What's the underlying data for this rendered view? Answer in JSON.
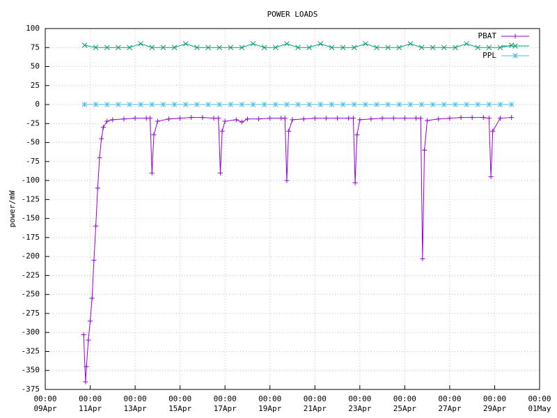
{
  "chart_data": {
    "type": "line",
    "title": "POWER LOADS",
    "y_label": "power/mW",
    "xlim": [
      "00:00 09Apr",
      "00:00 01May"
    ],
    "xticks": [
      "00:00 09Apr",
      "00:00 11Apr",
      "00:00 13Apr",
      "00:00 15Apr",
      "00:00 17Apr",
      "00:00 19Apr",
      "00:00 21Apr",
      "00:00 23Apr",
      "00:00 25Apr",
      "00:00 27Apr",
      "00:00 29Apr",
      "00:00 01May"
    ],
    "ylim": [
      -375,
      100
    ],
    "yticks": [
      100,
      75,
      50,
      25,
      0,
      -25,
      -50,
      -75,
      -100,
      -125,
      -150,
      -175,
      -200,
      -225,
      -250,
      -275,
      -300,
      -325,
      -350,
      -375
    ],
    "grid": true,
    "legend": "top right",
    "series": [
      {
        "name": "PBAT",
        "color": "#9400d3",
        "marker": "+",
        "x": [
          "17:00 10Apr",
          "19:00 10Apr",
          "20:00 10Apr",
          "22:00 10Apr",
          "00:00 11Apr",
          "02:00 11Apr",
          "04:00 11Apr",
          "06:00 11Apr",
          "08:00 11Apr",
          "10:00 11Apr",
          "12:00 11Apr",
          "14:00 11Apr",
          "18:00 11Apr",
          "00:00 12Apr",
          "12:00 12Apr",
          "00:00 13Apr",
          "12:00 13Apr",
          "16:00 13Apr",
          "18:00 13Apr",
          "20:00 13Apr",
          "00:00 14Apr",
          "12:00 14Apr",
          "00:00 15Apr",
          "12:00 15Apr",
          "00:00 16Apr",
          "12:00 16Apr",
          "17:00 16Apr",
          "19:00 16Apr",
          "21:00 16Apr",
          "00:00 17Apr",
          "12:00 17Apr",
          "18:00 17Apr",
          "00:00 18Apr",
          "12:00 18Apr",
          "00:00 19Apr",
          "12:00 19Apr",
          "16:00 19Apr",
          "18:00 19Apr",
          "20:00 19Apr",
          "00:00 20Apr",
          "12:00 20Apr",
          "00:00 21Apr",
          "12:00 21Apr",
          "00:00 22Apr",
          "12:00 22Apr",
          "17:00 22Apr",
          "19:00 22Apr",
          "21:00 22Apr",
          "00:00 23Apr",
          "12:00 23Apr",
          "00:00 24Apr",
          "12:00 24Apr",
          "00:00 25Apr",
          "12:00 25Apr",
          "17:00 25Apr",
          "19:00 25Apr",
          "21:00 25Apr",
          "00:00 26Apr",
          "12:00 26Apr",
          "00:00 27Apr",
          "12:00 27Apr",
          "00:00 28Apr",
          "12:00 28Apr",
          "18:00 28Apr",
          "20:00 28Apr",
          "22:00 28Apr",
          "06:00 29Apr",
          "18:00 29Apr"
        ],
        "values": [
          -303,
          -365,
          -345,
          -310,
          -285,
          -255,
          -205,
          -160,
          -110,
          -70,
          -45,
          -30,
          -22,
          -20,
          -19,
          -18,
          -18,
          -18,
          -90,
          -40,
          -22,
          -19,
          -18,
          -17,
          -17,
          -18,
          -18,
          -90,
          -35,
          -22,
          -20,
          -23,
          -19,
          -19,
          -18,
          -18,
          -18,
          -100,
          -35,
          -20,
          -19,
          -18,
          -18,
          -18,
          -18,
          -18,
          -103,
          -40,
          -20,
          -19,
          -18,
          -18,
          -18,
          -18,
          -18,
          -203,
          -60,
          -21,
          -19,
          -18,
          -17,
          -17,
          -17,
          -18,
          -95,
          -35,
          -18,
          -17
        ]
      },
      {
        "color": "#009e73",
        "marker": "x",
        "x": [
          "18:00 10Apr",
          "06:00 11Apr",
          "18:00 11Apr",
          "06:00 12Apr",
          "18:00 12Apr",
          "06:00 13Apr",
          "18:00 13Apr",
          "06:00 14Apr",
          "18:00 14Apr",
          "06:00 15Apr",
          "18:00 15Apr",
          "06:00 16Apr",
          "18:00 16Apr",
          "06:00 17Apr",
          "18:00 17Apr",
          "06:00 18Apr",
          "18:00 18Apr",
          "06:00 19Apr",
          "18:00 19Apr",
          "06:00 20Apr",
          "18:00 20Apr",
          "06:00 21Apr",
          "18:00 21Apr",
          "06:00 22Apr",
          "18:00 22Apr",
          "06:00 23Apr",
          "18:00 23Apr",
          "06:00 24Apr",
          "18:00 24Apr",
          "06:00 25Apr",
          "18:00 25Apr",
          "06:00 26Apr",
          "18:00 26Apr",
          "06:00 27Apr",
          "18:00 27Apr",
          "06:00 28Apr",
          "18:00 28Apr",
          "06:00 29Apr",
          "18:00 29Apr"
        ],
        "values": [
          78,
          75,
          75,
          75,
          75,
          80,
          75,
          75,
          75,
          80,
          75,
          75,
          75,
          75,
          75,
          80,
          75,
          75,
          80,
          75,
          75,
          80,
          75,
          75,
          75,
          80,
          75,
          75,
          75,
          80,
          75,
          75,
          75,
          75,
          80,
          75,
          75,
          75,
          78
        ]
      },
      {
        "name": "PPL",
        "color": "#56b4e9",
        "marker": "*",
        "x": [
          "18:00 10Apr",
          "06:00 11Apr",
          "18:00 11Apr",
          "06:00 12Apr",
          "18:00 12Apr",
          "06:00 13Apr",
          "18:00 13Apr",
          "06:00 14Apr",
          "18:00 14Apr",
          "06:00 15Apr",
          "18:00 15Apr",
          "06:00 16Apr",
          "18:00 16Apr",
          "06:00 17Apr",
          "18:00 17Apr",
          "06:00 18Apr",
          "18:00 18Apr",
          "06:00 19Apr",
          "18:00 19Apr",
          "06:00 20Apr",
          "18:00 20Apr",
          "06:00 21Apr",
          "18:00 21Apr",
          "06:00 22Apr",
          "18:00 22Apr",
          "06:00 23Apr",
          "18:00 23Apr",
          "06:00 24Apr",
          "18:00 24Apr",
          "06:00 25Apr",
          "18:00 25Apr",
          "06:00 26Apr",
          "18:00 26Apr",
          "06:00 27Apr",
          "18:00 27Apr",
          "06:00 28Apr",
          "18:00 28Apr",
          "06:00 29Apr",
          "18:00 29Apr"
        ],
        "values": [
          0,
          0,
          0,
          0,
          0,
          0,
          0,
          0,
          0,
          0,
          0,
          0,
          0,
          0,
          0,
          0,
          0,
          0,
          0,
          0,
          0,
          0,
          0,
          0,
          0,
          0,
          0,
          0,
          0,
          0,
          0,
          0,
          0,
          0,
          0,
          0,
          0,
          0,
          0
        ]
      }
    ]
  }
}
